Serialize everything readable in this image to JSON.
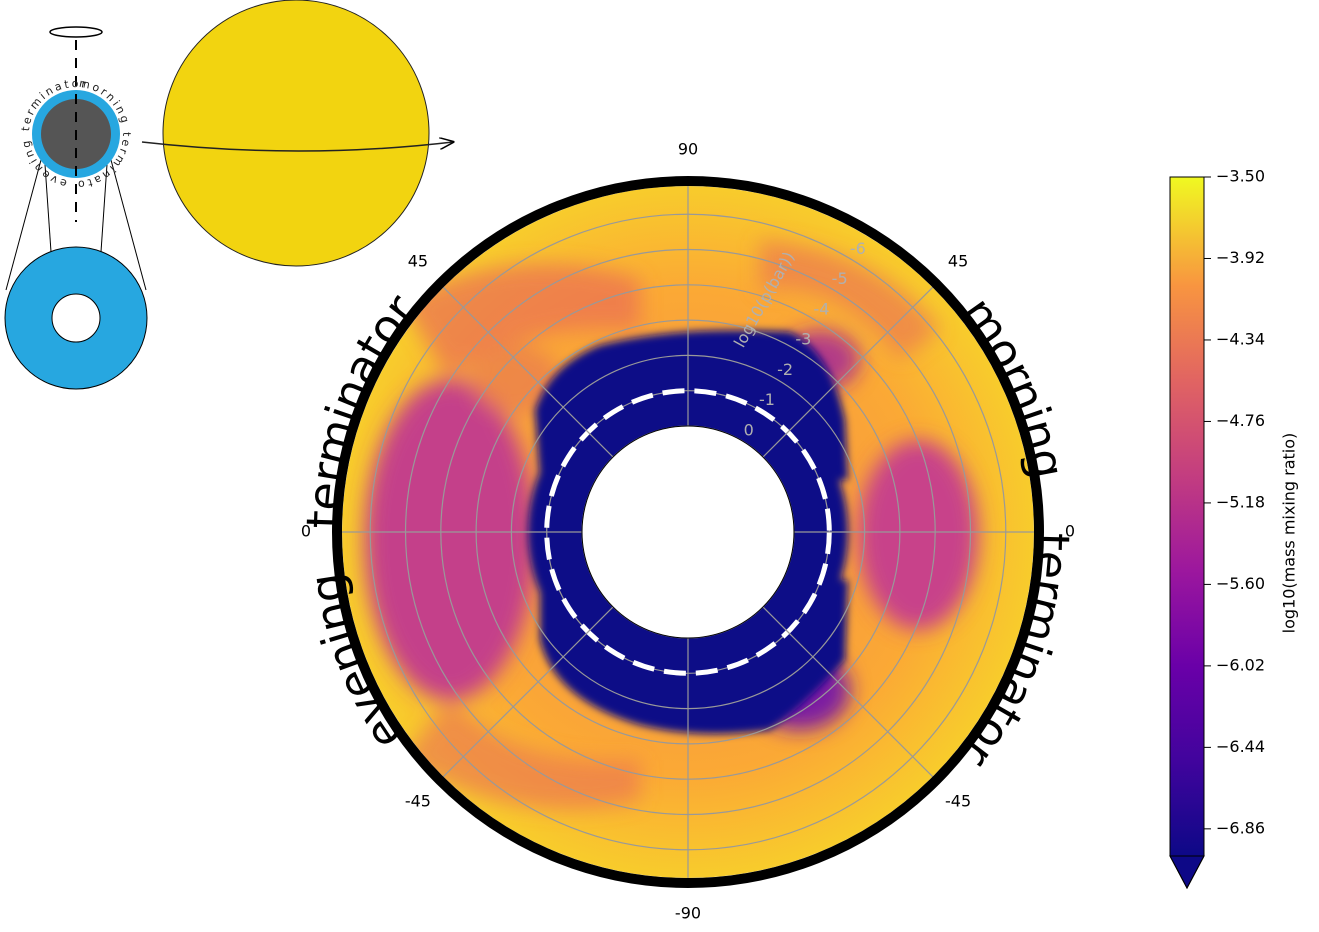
{
  "chart_data": {
    "type": "polar_contour",
    "angle_ticks": [
      90,
      45,
      0,
      -45,
      -90
    ],
    "rlim": [
      0,
      -6.8
    ],
    "rticks": [
      0,
      -1,
      -2,
      -3,
      -4,
      -5,
      -6
    ],
    "r_label": "log10(p(bar))",
    "dashed_level": -1,
    "grid": true,
    "left_label": "evening terminator",
    "right_label": "morning terminator",
    "colorbar": {
      "label": "log10(mass mixing ratio)",
      "clim": [
        -7,
        -3.5
      ],
      "ticks": [
        {
          "value": -3.5,
          "label": "−3.50"
        },
        {
          "value": -3.92,
          "label": "−3.92"
        },
        {
          "value": -4.34,
          "label": "−4.34"
        },
        {
          "value": -4.76,
          "label": "−4.76"
        },
        {
          "value": -5.18,
          "label": "−5.18"
        },
        {
          "value": -5.6,
          "label": "−5.60"
        },
        {
          "value": -6.02,
          "label": "−6.02"
        },
        {
          "value": -6.44,
          "label": "−6.44"
        },
        {
          "value": -6.86,
          "label": "−6.86"
        }
      ]
    }
  },
  "inset": {
    "left_arc": "evening terminator",
    "right_arc": "morning terminator"
  }
}
